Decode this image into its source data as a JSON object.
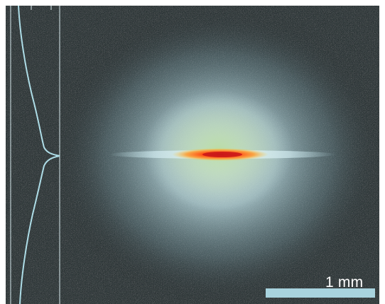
{
  "image": {
    "description_colors": {
      "background": "#2b3335",
      "halo": "#cfe6ea",
      "core": "#ff5a1a",
      "profile_line": "#a9dbe6",
      "scale_bar": "#a9d4df"
    },
    "scale_bar": {
      "label": "1 mm"
    }
  }
}
